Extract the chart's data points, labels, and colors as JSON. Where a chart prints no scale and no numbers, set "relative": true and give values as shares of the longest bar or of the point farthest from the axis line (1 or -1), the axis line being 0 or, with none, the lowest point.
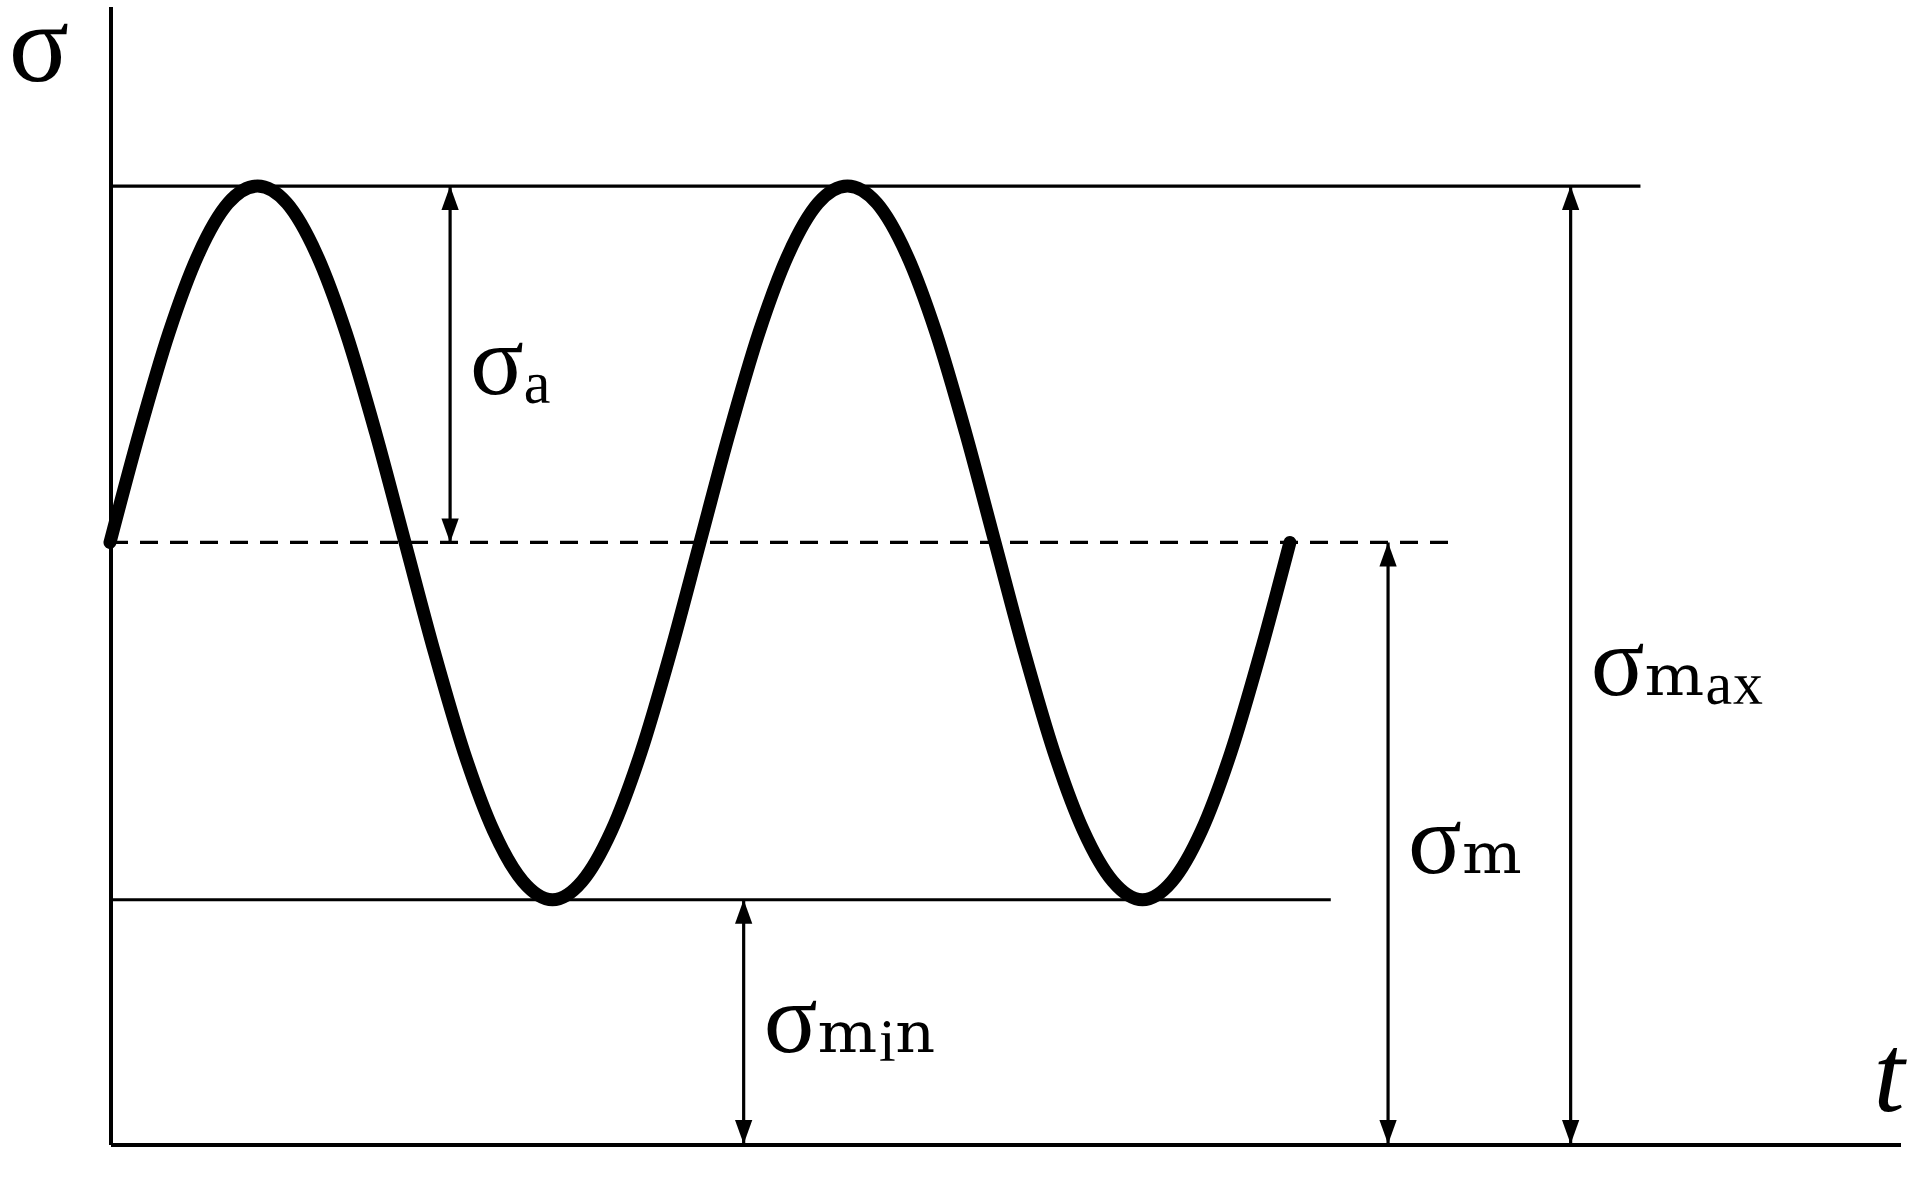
{
  "chart_data": {
    "type": "line",
    "xlabel": "t",
    "ylabel": "σ",
    "relative": true,
    "grid": false,
    "categories": [
      null,
      null,
      null,
      null,
      null,
      null,
      null,
      null,
      null,
      null,
      null,
      null,
      null,
      null,
      null,
      null,
      null,
      null,
      null,
      null,
      null,
      null,
      null,
      null,
      null,
      null,
      null,
      null,
      null,
      null,
      null,
      null,
      null,
      null,
      null,
      null,
      null,
      null,
      null,
      null,
      null
    ],
    "series": [
      {
        "color": "#000000",
        "values": [
          0.628,
          0.743,
          0.847,
          0.929,
          0.982,
          1.0,
          0.982,
          0.929,
          0.847,
          0.743,
          0.628,
          0.513,
          0.409,
          0.327,
          0.274,
          0.255,
          0.274,
          0.327,
          0.409,
          0.513,
          0.628,
          0.743,
          0.847,
          0.929,
          0.982,
          1.0,
          0.982,
          0.929,
          0.847,
          0.743,
          0.628,
          0.513,
          0.409,
          0.327,
          0.274,
          0.255,
          0.274,
          0.327,
          0.409,
          0.513,
          0.628
        ]
      }
    ],
    "ref_lines": [
      {
        "axis": "y",
        "value": 1.0
      },
      {
        "axis": "y",
        "value": 0.255
      },
      {
        "axis": "y",
        "value": 0.628,
        "line_style": "dashed"
      }
    ],
    "annotations": [
      "σₐ",
      "σₘₐₓ",
      "σₘ",
      "σₘᵢₙ"
    ]
  }
}
